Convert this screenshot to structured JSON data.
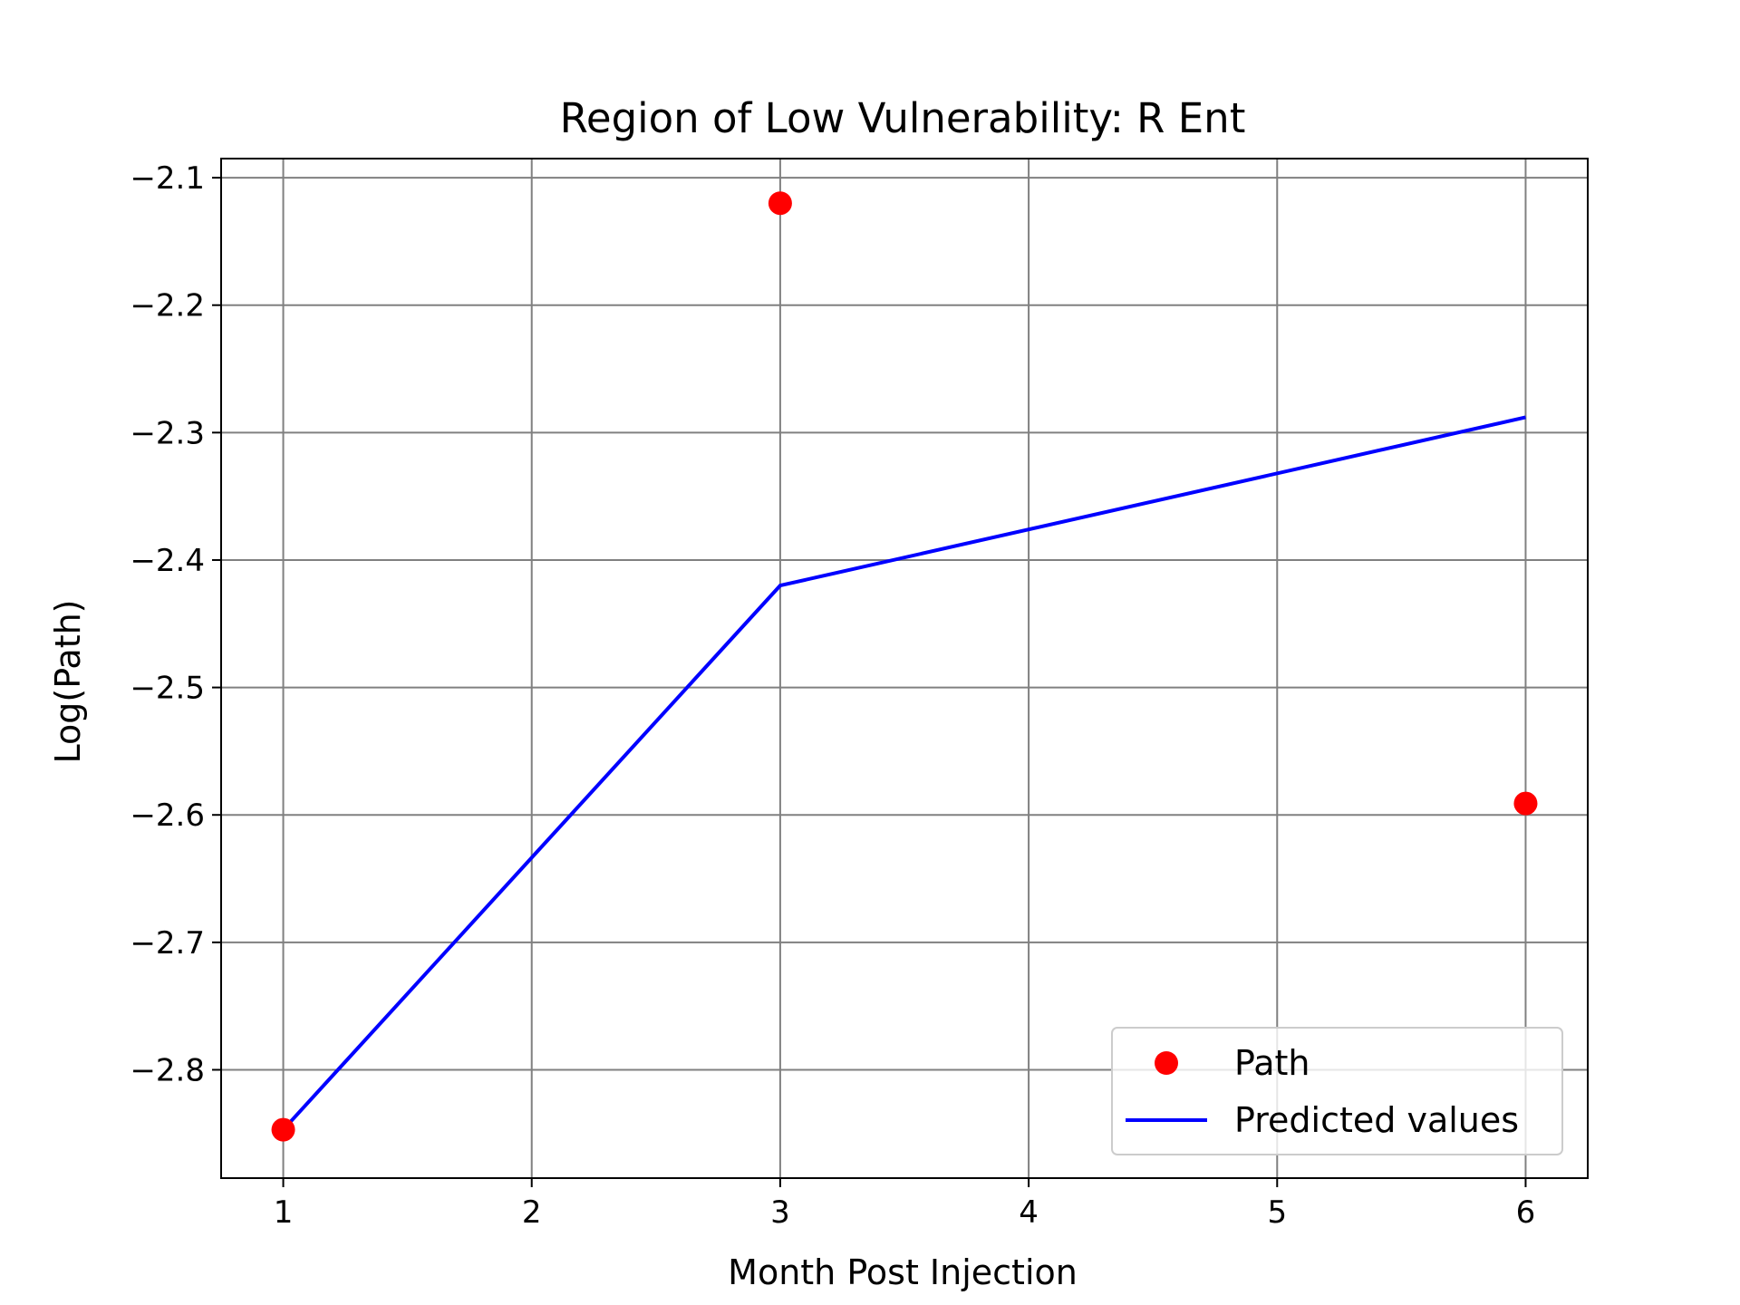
{
  "chart_data": {
    "type": "line",
    "title": "Region of Low Vulnerability: R Ent",
    "xlabel": "Month Post Injection",
    "ylabel": "Log(Path)",
    "xlim": [
      0.75,
      6.25
    ],
    "ylim": [
      -2.885,
      -2.085
    ],
    "x_ticks": [
      1,
      2,
      3,
      4,
      5,
      6
    ],
    "x_tick_labels": [
      "1",
      "2",
      "3",
      "4",
      "5",
      "6"
    ],
    "y_ticks": [
      -2.1,
      -2.2,
      -2.3,
      -2.4,
      -2.5,
      -2.6,
      -2.7,
      -2.8
    ],
    "y_tick_labels": [
      "−2.1",
      "−2.2",
      "−2.3",
      "−2.4",
      "−2.5",
      "−2.6",
      "−2.7",
      "−2.8"
    ],
    "grid": true,
    "legend_position": "lower-right",
    "series": [
      {
        "name": "Path",
        "kind": "scatter",
        "color": "#ff0000",
        "x": [
          1,
          3,
          6
        ],
        "y": [
          -2.847,
          -2.12,
          -2.591
        ]
      },
      {
        "name": "Predicted values",
        "kind": "line",
        "color": "#0000ff",
        "x": [
          1,
          3,
          6
        ],
        "y": [
          -2.847,
          -2.42,
          -2.288
        ]
      }
    ]
  }
}
